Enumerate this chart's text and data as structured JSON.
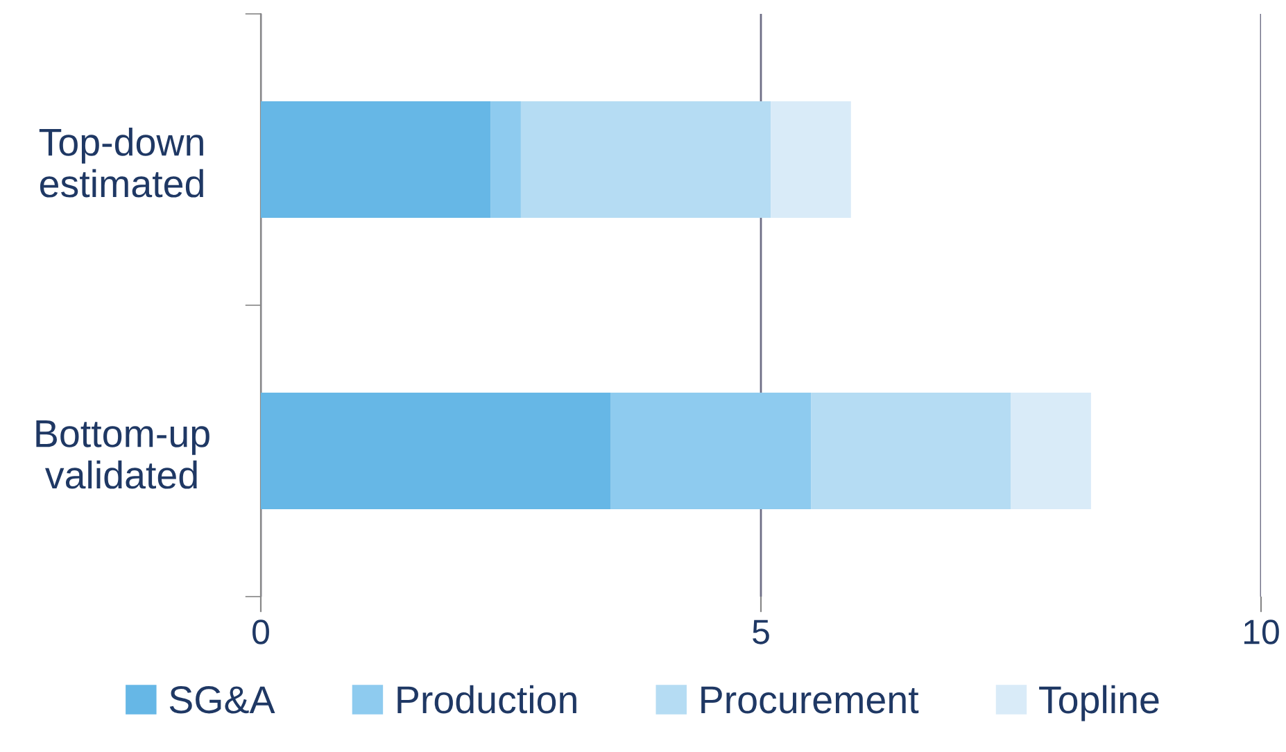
{
  "chart_data": {
    "type": "bar",
    "orientation": "horizontal",
    "stacked": true,
    "categories": [
      "Top-down\nestimated",
      "Bottom-up\nvalidated"
    ],
    "series": [
      {
        "name": "SG&A",
        "color": "#66b7e6",
        "values": [
          2.3,
          3.5
        ]
      },
      {
        "name": "Production",
        "color": "#8ecbef",
        "values": [
          0.3,
          2.0
        ]
      },
      {
        "name": "Procurement",
        "color": "#b5dcf3",
        "values": [
          2.5,
          2.0
        ]
      },
      {
        "name": "Topline",
        "color": "#d9ebf8",
        "values": [
          0.8,
          0.8
        ]
      }
    ],
    "xlim": [
      0,
      10
    ],
    "xticks": [
      0,
      5,
      10
    ],
    "grid": "x",
    "legend": "bottom"
  }
}
